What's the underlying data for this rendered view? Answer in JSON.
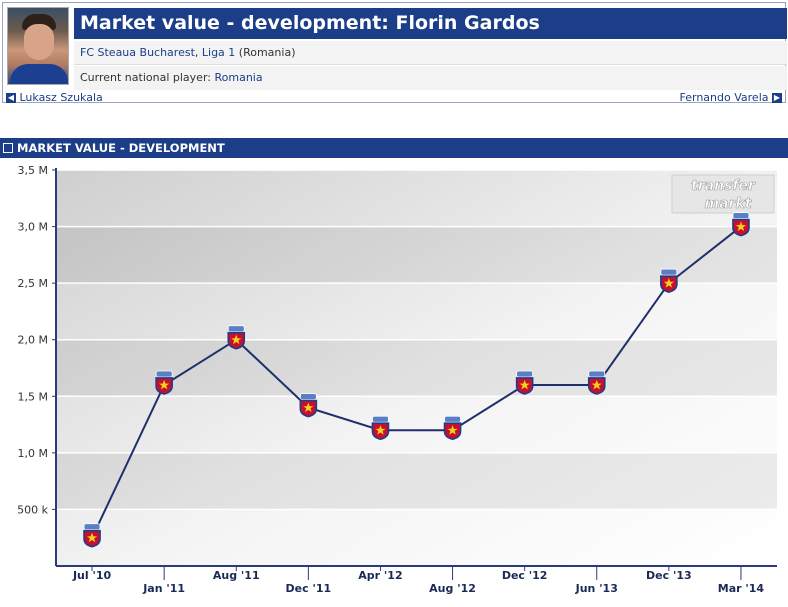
{
  "page": {
    "title": "Market value - development: Florin Gardos",
    "club": "FC Steaua Bucharest",
    "league": "Liga 1",
    "country": "(Romania)",
    "national_label": "Current national player:",
    "national_team": "Romania",
    "prev_player": "Lukasz Szukala",
    "next_player": "Fernando Varela",
    "section_title": "MARKET VALUE - DEVELOPMENT",
    "watermark_line1": "transfer",
    "watermark_line2": "markt"
  },
  "colors": {
    "brand_blue": "#1c3d88",
    "line": "#1f2f6b",
    "marker_red": "#c8102e"
  },
  "chart_data": {
    "type": "line",
    "title": "",
    "xlabel": "",
    "ylabel": "",
    "ylim": [
      0,
      3500000
    ],
    "yticks": [
      {
        "value": 500000,
        "label": "500 k"
      },
      {
        "value": 1000000,
        "label": "1,0 M"
      },
      {
        "value": 1500000,
        "label": "1,5 M"
      },
      {
        "value": 2000000,
        "label": "2,0 M"
      },
      {
        "value": 2500000,
        "label": "2,5 M"
      },
      {
        "value": 3000000,
        "label": "3,0 M"
      },
      {
        "value": 3500000,
        "label": "3,5 M"
      }
    ],
    "categories": [
      "Jul '10",
      "Jan '11",
      "Aug '11",
      "Dec '11",
      "Apr '12",
      "Aug '12",
      "Dec '12",
      "Jun '13",
      "Dec '13",
      "Mar '14"
    ],
    "series": [
      {
        "values": [
          250000,
          1600000,
          2000000,
          1400000,
          1200000,
          1200000,
          1600000,
          1600000,
          2500000,
          3000000
        ]
      }
    ],
    "grid": true,
    "legend": "none"
  }
}
